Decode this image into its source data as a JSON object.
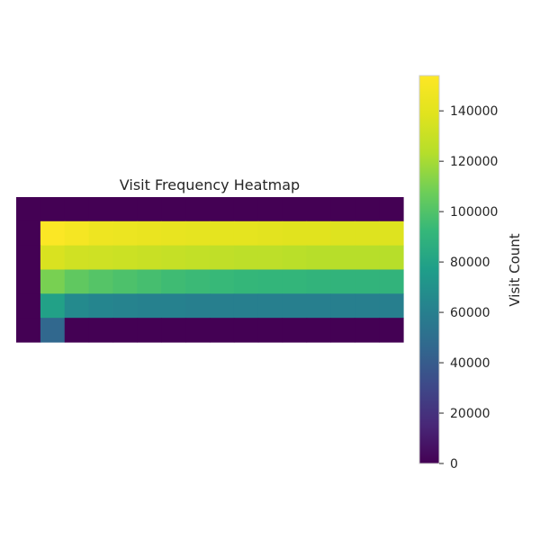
{
  "chart_data": {
    "type": "heatmap",
    "title": "Visit Frequency Heatmap",
    "xlabel": "",
    "ylabel": "",
    "grid": false,
    "rows": 6,
    "cols": 16,
    "values": [
      [
        0,
        0,
        0,
        0,
        0,
        0,
        0,
        0,
        0,
        0,
        0,
        0,
        0,
        0,
        0,
        0
      ],
      [
        0,
        153000,
        150000,
        146000,
        145000,
        144000,
        143000,
        142000,
        141000,
        141000,
        140000,
        139000,
        139000,
        138000,
        138000,
        138000
      ],
      [
        0,
        136000,
        133000,
        132000,
        131000,
        130000,
        129000,
        128000,
        127000,
        126000,
        126000,
        125000,
        124000,
        124000,
        124000,
        124000
      ],
      [
        0,
        110000,
        104000,
        101000,
        99000,
        97000,
        95000,
        94000,
        93000,
        92000,
        91000,
        91000,
        90000,
        90000,
        90000,
        90000
      ],
      [
        0,
        79000,
        66000,
        63000,
        62000,
        61000,
        61000,
        60000,
        60000,
        60000,
        60000,
        60000,
        60000,
        60000,
        60000,
        60000
      ],
      [
        0,
        46000,
        0,
        0,
        0,
        0,
        0,
        0,
        0,
        0,
        0,
        0,
        0,
        0,
        0,
        0
      ]
    ],
    "colorbar": {
      "label": "Visit Count",
      "min": 0,
      "max": 154000,
      "ticks": [
        0,
        20000,
        40000,
        60000,
        80000,
        100000,
        120000,
        140000
      ],
      "colormap": "viridis"
    }
  }
}
